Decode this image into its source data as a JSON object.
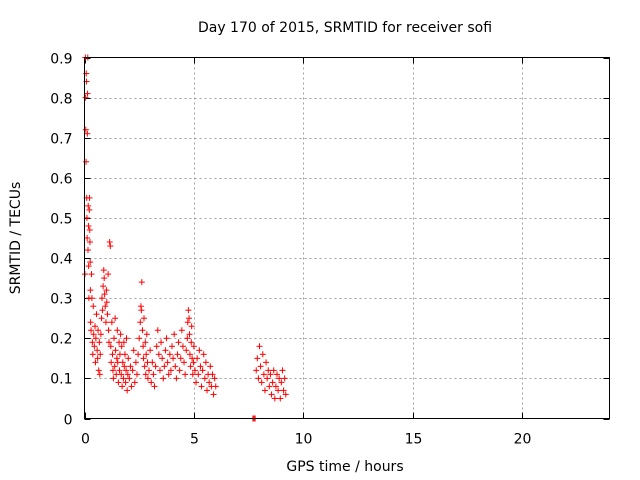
{
  "chart_data": {
    "type": "scatter",
    "title": "Day 170 of 2015, SRMTID for receiver sofi",
    "xlabel": "GPS time / hours",
    "ylabel": "SRMTID / TECUs",
    "xlim": [
      0,
      24
    ],
    "ylim": [
      0,
      0.9
    ],
    "xticks": [
      0,
      5,
      10,
      15,
      20
    ],
    "xtick_labels": [
      "0",
      "5",
      "10",
      "15",
      "20"
    ],
    "yticks": [
      0,
      0.1,
      0.2,
      0.3,
      0.4,
      0.5,
      0.6,
      0.7,
      0.8,
      0.9
    ],
    "ytick_labels": [
      "0",
      "0.1",
      "0.2",
      "0.3",
      "0.4",
      "0.5",
      "0.6",
      "0.7",
      "0.8",
      "0.9"
    ],
    "grid": true,
    "marker": "+",
    "series_color": "#ff0000",
    "series": [
      {
        "name": "SRMTID",
        "points": [
          [
            0.02,
            0.36
          ],
          [
            0.04,
            0.9
          ],
          [
            0.05,
            0.8
          ],
          [
            0.06,
            0.72
          ],
          [
            0.07,
            0.64
          ],
          [
            0.08,
            0.86
          ],
          [
            0.09,
            0.84
          ],
          [
            0.1,
            0.55
          ],
          [
            0.11,
            0.5
          ],
          [
            0.12,
            0.45
          ],
          [
            0.13,
            0.71
          ],
          [
            0.14,
            0.81
          ],
          [
            0.15,
            0.9
          ],
          [
            0.16,
            0.42
          ],
          [
            0.17,
            0.53
          ],
          [
            0.18,
            0.48
          ],
          [
            0.19,
            0.38
          ],
          [
            0.2,
            0.3
          ],
          [
            0.22,
            0.52
          ],
          [
            0.23,
            0.55
          ],
          [
            0.24,
            0.47
          ],
          [
            0.25,
            0.44
          ],
          [
            0.26,
            0.39
          ],
          [
            0.27,
            0.32
          ],
          [
            0.28,
            0.24
          ],
          [
            0.3,
            0.22
          ],
          [
            0.32,
            0.36
          ],
          [
            0.34,
            0.3
          ],
          [
            0.36,
            0.19
          ],
          [
            0.38,
            0.16
          ],
          [
            0.4,
            0.28
          ],
          [
            0.42,
            0.21
          ],
          [
            0.45,
            0.18
          ],
          [
            0.48,
            0.23
          ],
          [
            0.5,
            0.14
          ],
          [
            0.52,
            0.2
          ],
          [
            0.55,
            0.26
          ],
          [
            0.58,
            0.17
          ],
          [
            0.6,
            0.15
          ],
          [
            0.62,
            0.22
          ],
          [
            0.65,
            0.12
          ],
          [
            0.68,
            0.19
          ],
          [
            0.7,
            0.11
          ],
          [
            0.72,
            0.16
          ],
          [
            0.75,
            0.21
          ],
          [
            0.78,
            0.25
          ],
          [
            0.8,
            0.3
          ],
          [
            0.82,
            0.27
          ],
          [
            0.85,
            0.33
          ],
          [
            0.88,
            0.37
          ],
          [
            0.9,
            0.35
          ],
          [
            0.92,
            0.31
          ],
          [
            0.95,
            0.28
          ],
          [
            0.98,
            0.24
          ],
          [
            1.0,
            0.32
          ],
          [
            1.02,
            0.29
          ],
          [
            1.05,
            0.26
          ],
          [
            1.08,
            0.36
          ],
          [
            1.1,
            0.22
          ],
          [
            1.12,
            0.19
          ],
          [
            1.15,
            0.44
          ],
          [
            1.18,
            0.43
          ],
          [
            1.2,
            0.18
          ],
          [
            1.22,
            0.14
          ],
          [
            1.25,
            0.24
          ],
          [
            1.28,
            0.16
          ],
          [
            1.3,
            0.12
          ],
          [
            1.32,
            0.1
          ],
          [
            1.35,
            0.2
          ],
          [
            1.38,
            0.13
          ],
          [
            1.4,
            0.25
          ],
          [
            1.42,
            0.17
          ],
          [
            1.45,
            0.11
          ],
          [
            1.48,
            0.15
          ],
          [
            1.5,
            0.22
          ],
          [
            1.52,
            0.14
          ],
          [
            1.55,
            0.09
          ],
          [
            1.58,
            0.19
          ],
          [
            1.6,
            0.12
          ],
          [
            1.62,
            0.16
          ],
          [
            1.65,
            0.21
          ],
          [
            1.68,
            0.11
          ],
          [
            1.7,
            0.18
          ],
          [
            1.72,
            0.08
          ],
          [
            1.75,
            0.14
          ],
          [
            1.78,
            0.1
          ],
          [
            1.8,
            0.19
          ],
          [
            1.82,
            0.13
          ],
          [
            1.85,
            0.16
          ],
          [
            1.88,
            0.09
          ],
          [
            1.9,
            0.12
          ],
          [
            1.92,
            0.2
          ],
          [
            1.95,
            0.07
          ],
          [
            1.98,
            0.11
          ],
          [
            2.0,
            0.15
          ],
          [
            2.05,
            0.1
          ],
          [
            2.1,
            0.13
          ],
          [
            2.15,
            0.08
          ],
          [
            2.2,
            0.12
          ],
          [
            2.25,
            0.17
          ],
          [
            2.3,
            0.09
          ],
          [
            2.35,
            0.14
          ],
          [
            2.4,
            0.11
          ],
          [
            2.45,
            0.16
          ],
          [
            2.5,
            0.2
          ],
          [
            2.55,
            0.24
          ],
          [
            2.58,
            0.28
          ],
          [
            2.6,
            0.27
          ],
          [
            2.62,
            0.34
          ],
          [
            2.65,
            0.22
          ],
          [
            2.68,
            0.18
          ],
          [
            2.7,
            0.15
          ],
          [
            2.72,
            0.25
          ],
          [
            2.75,
            0.13
          ],
          [
            2.78,
            0.19
          ],
          [
            2.8,
            0.11
          ],
          [
            2.82,
            0.16
          ],
          [
            2.85,
            0.21
          ],
          [
            2.88,
            0.14
          ],
          [
            2.9,
            0.1
          ],
          [
            2.95,
            0.12
          ],
          [
            3.0,
            0.17
          ],
          [
            3.05,
            0.09
          ],
          [
            3.1,
            0.14
          ],
          [
            3.15,
            0.11
          ],
          [
            3.2,
            0.08
          ],
          [
            3.25,
            0.13
          ],
          [
            3.3,
            0.18
          ],
          [
            3.35,
            0.22
          ],
          [
            3.4,
            0.16
          ],
          [
            3.45,
            0.12
          ],
          [
            3.5,
            0.19
          ],
          [
            3.55,
            0.15
          ],
          [
            3.6,
            0.1
          ],
          [
            3.65,
            0.13
          ],
          [
            3.7,
            0.17
          ],
          [
            3.75,
            0.2
          ],
          [
            3.8,
            0.14
          ],
          [
            3.85,
            0.11
          ],
          [
            3.9,
            0.16
          ],
          [
            3.95,
            0.12
          ],
          [
            4.0,
            0.18
          ],
          [
            4.05,
            0.15
          ],
          [
            4.1,
            0.21
          ],
          [
            4.15,
            0.13
          ],
          [
            4.2,
            0.1
          ],
          [
            4.25,
            0.16
          ],
          [
            4.3,
            0.19
          ],
          [
            4.35,
            0.12
          ],
          [
            4.4,
            0.15
          ],
          [
            4.45,
            0.22
          ],
          [
            4.5,
            0.18
          ],
          [
            4.55,
            0.14
          ],
          [
            4.6,
            0.11
          ],
          [
            4.65,
            0.17
          ],
          [
            4.7,
            0.2
          ],
          [
            4.72,
            0.24
          ],
          [
            4.75,
            0.27
          ],
          [
            4.78,
            0.25
          ],
          [
            4.8,
            0.21
          ],
          [
            4.82,
            0.16
          ],
          [
            4.85,
            0.13
          ],
          [
            4.88,
            0.19
          ],
          [
            4.9,
            0.23
          ],
          [
            4.92,
            0.15
          ],
          [
            4.95,
            0.11
          ],
          [
            4.98,
            0.14
          ],
          [
            5.0,
            0.18
          ],
          [
            5.05,
            0.12
          ],
          [
            5.1,
            0.09
          ],
          [
            5.15,
            0.15
          ],
          [
            5.2,
            0.11
          ],
          [
            5.25,
            0.17
          ],
          [
            5.3,
            0.13
          ],
          [
            5.35,
            0.08
          ],
          [
            5.4,
            0.12
          ],
          [
            5.45,
            0.16
          ],
          [
            5.5,
            0.1
          ],
          [
            5.55,
            0.14
          ],
          [
            5.6,
            0.07
          ],
          [
            5.65,
            0.11
          ],
          [
            5.7,
            0.09
          ],
          [
            5.75,
            0.13
          ],
          [
            5.8,
            0.08
          ],
          [
            5.85,
            0.11
          ],
          [
            5.9,
            0.06
          ],
          [
            5.95,
            0.1
          ],
          [
            6.0,
            0.08
          ],
          [
            7.7,
            0.0
          ],
          [
            7.75,
            0.0
          ],
          [
            7.8,
            0.0
          ],
          [
            7.85,
            0.12
          ],
          [
            7.9,
            0.15
          ],
          [
            7.95,
            0.1
          ],
          [
            8.0,
            0.18
          ],
          [
            8.05,
            0.13
          ],
          [
            8.1,
            0.09
          ],
          [
            8.15,
            0.16
          ],
          [
            8.2,
            0.11
          ],
          [
            8.25,
            0.07
          ],
          [
            8.3,
            0.14
          ],
          [
            8.35,
            0.1
          ],
          [
            8.4,
            0.12
          ],
          [
            8.45,
            0.08
          ],
          [
            8.5,
            0.11
          ],
          [
            8.55,
            0.06
          ],
          [
            8.6,
            0.09
          ],
          [
            8.65,
            0.12
          ],
          [
            8.7,
            0.05
          ],
          [
            8.75,
            0.08
          ],
          [
            8.8,
            0.11
          ],
          [
            8.85,
            0.07
          ],
          [
            8.9,
            0.1
          ],
          [
            8.95,
            0.05
          ],
          [
            9.0,
            0.09
          ],
          [
            9.05,
            0.12
          ],
          [
            9.1,
            0.07
          ],
          [
            9.15,
            0.1
          ],
          [
            9.2,
            0.06
          ]
        ]
      }
    ]
  }
}
